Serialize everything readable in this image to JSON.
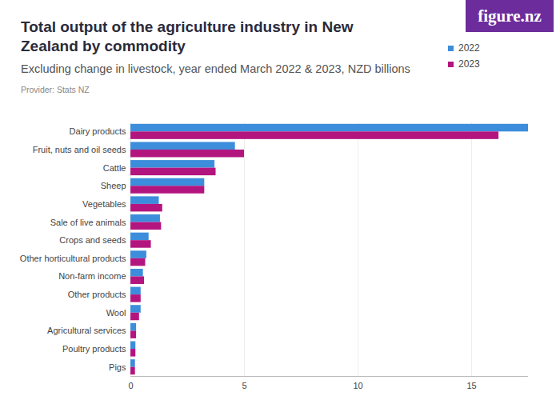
{
  "chart_data": {
    "type": "bar",
    "orientation": "horizontal",
    "title": "Total output of the agriculture industry in New Zealand by commodity",
    "subtitle": "Excluding change in livestock, year ended March 2022 & 2023, NZD billions",
    "caption": "Provider: Stats NZ",
    "logo": "figure.nz",
    "categories": [
      "Dairy products",
      "Fruit, nuts and oil seeds",
      "Cattle",
      "Sheep",
      "Vegetables",
      "Sale of live animals",
      "Crops and seeds",
      "Other horticultural products",
      "Non-farm income",
      "Other products",
      "Wool",
      "Agricultural services",
      "Poultry products",
      "Pigs"
    ],
    "series": [
      {
        "name": "2022",
        "color": "#3c8ddb",
        "values": [
          17.5,
          4.6,
          3.7,
          3.25,
          1.25,
          1.3,
          0.8,
          0.7,
          0.55,
          0.45,
          0.45,
          0.25,
          0.22,
          0.2
        ]
      },
      {
        "name": "2023",
        "color": "#b3157f",
        "values": [
          16.2,
          5.0,
          3.75,
          3.25,
          1.4,
          1.35,
          0.9,
          0.65,
          0.6,
          0.45,
          0.38,
          0.25,
          0.22,
          0.2
        ]
      }
    ],
    "xlim": [
      0,
      17.5
    ],
    "xticks": [
      0,
      5,
      10,
      15
    ],
    "grid": true,
    "legend": "top-right"
  }
}
